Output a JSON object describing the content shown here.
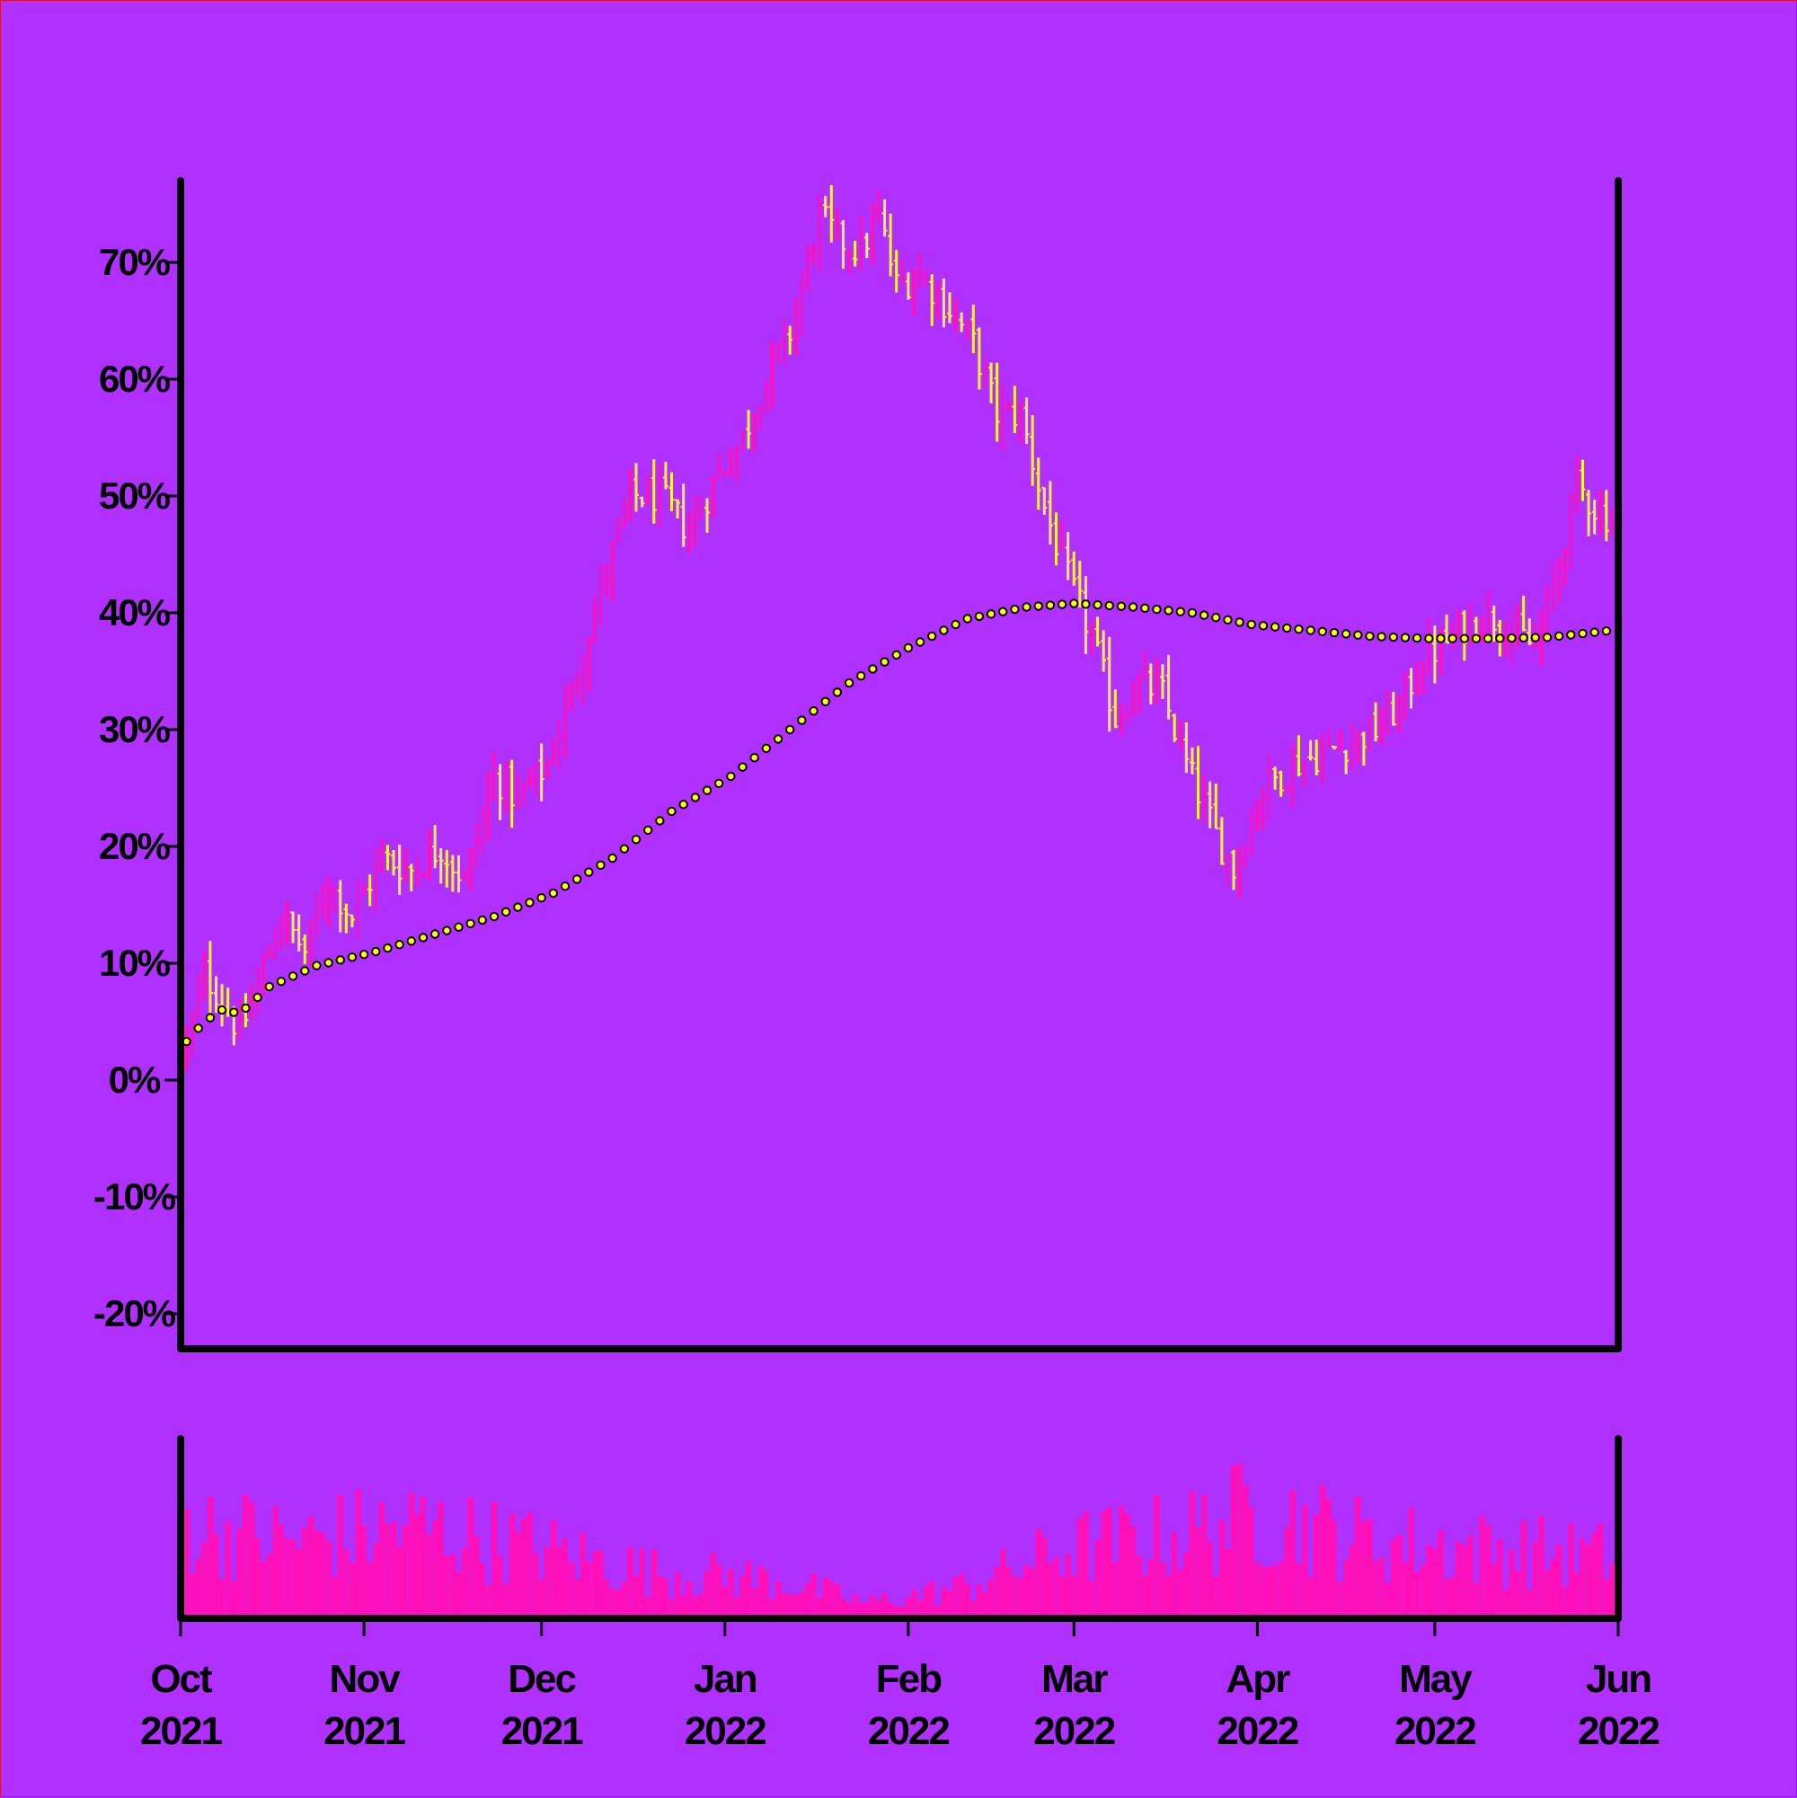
{
  "colors": {
    "background": "#b030ff",
    "up": "#ff10b8",
    "down": "#ffee44",
    "volume": "#ff10b8",
    "axis": "#000000",
    "trend_fill": "#ffff00"
  },
  "chart_data": {
    "type": "ohlc",
    "title": "",
    "xlabel": "",
    "ylabel": "",
    "ylim": [
      -0.23,
      0.77
    ],
    "yticks": [
      -0.2,
      -0.1,
      0,
      0.1,
      0.2,
      0.3,
      0.4,
      0.5,
      0.6,
      0.7
    ],
    "ytick_labels": [
      "-20%",
      "-10%",
      "0%",
      "10%",
      "20%",
      "30%",
      "40%",
      "50%",
      "60%",
      "70%"
    ],
    "xrange": [
      "2021-10-01",
      "2022-06-01"
    ],
    "xticks": [
      {
        "date": "2021-10-01",
        "month": "Oct",
        "year": "2021"
      },
      {
        "date": "2021-11-01",
        "month": "Nov",
        "year": "2021"
      },
      {
        "date": "2021-12-01",
        "month": "Dec",
        "year": "2021"
      },
      {
        "date": "2022-01-01",
        "month": "Jan",
        "year": "2022"
      },
      {
        "date": "2022-02-01",
        "month": "Feb",
        "year": "2022"
      },
      {
        "date": "2022-03-01",
        "month": "Mar",
        "year": "2022"
      },
      {
        "date": "2022-04-01",
        "month": "Apr",
        "year": "2022"
      },
      {
        "date": "2022-05-01",
        "month": "May",
        "year": "2022"
      },
      {
        "date": "2022-06-01",
        "month": "Jun",
        "year": "2022"
      }
    ],
    "price_anchors": [
      [
        "2021-10-02",
        0.03
      ],
      [
        "2021-10-05",
        0.09
      ],
      [
        "2021-10-08",
        0.07
      ],
      [
        "2021-10-11",
        0.04
      ],
      [
        "2021-10-14",
        0.08
      ],
      [
        "2021-10-18",
        0.14
      ],
      [
        "2021-10-22",
        0.11
      ],
      [
        "2021-10-26",
        0.17
      ],
      [
        "2021-10-30",
        0.14
      ],
      [
        "2021-11-04",
        0.19
      ],
      [
        "2021-11-09",
        0.18
      ],
      [
        "2021-11-14",
        0.2
      ],
      [
        "2021-11-18",
        0.17
      ],
      [
        "2021-11-23",
        0.26
      ],
      [
        "2021-11-27",
        0.24
      ],
      [
        "2021-12-02",
        0.27
      ],
      [
        "2021-12-06",
        0.33
      ],
      [
        "2021-12-11",
        0.42
      ],
      [
        "2021-12-16",
        0.5
      ],
      [
        "2021-12-21",
        0.5
      ],
      [
        "2021-12-26",
        0.47
      ],
      [
        "2021-12-31",
        0.52
      ],
      [
        "2022-01-04",
        0.55
      ],
      [
        "2022-01-08",
        0.6
      ],
      [
        "2022-01-12",
        0.64
      ],
      [
        "2022-01-17",
        0.74
      ],
      [
        "2022-01-20",
        0.72
      ],
      [
        "2022-01-24",
        0.71
      ],
      [
        "2022-01-27",
        0.74
      ],
      [
        "2022-01-30",
        0.68
      ],
      [
        "2022-02-03",
        0.69
      ],
      [
        "2022-02-08",
        0.66
      ],
      [
        "2022-02-12",
        0.63
      ],
      [
        "2022-02-16",
        0.57
      ],
      [
        "2022-02-20",
        0.57
      ],
      [
        "2022-02-24",
        0.49
      ],
      [
        "2022-02-28",
        0.43
      ],
      [
        "2022-03-04",
        0.38
      ],
      [
        "2022-03-08",
        0.31
      ],
      [
        "2022-03-12",
        0.34
      ],
      [
        "2022-03-16",
        0.33
      ],
      [
        "2022-03-20",
        0.27
      ],
      [
        "2022-03-25",
        0.21
      ],
      [
        "2022-03-28",
        0.18
      ],
      [
        "2022-04-02",
        0.25
      ],
      [
        "2022-04-07",
        0.27
      ],
      [
        "2022-04-12",
        0.28
      ],
      [
        "2022-04-17",
        0.29
      ],
      [
        "2022-04-21",
        0.3
      ],
      [
        "2022-04-25",
        0.32
      ],
      [
        "2022-04-29",
        0.36
      ],
      [
        "2022-05-04",
        0.38
      ],
      [
        "2022-05-09",
        0.4
      ],
      [
        "2022-05-13",
        0.39
      ],
      [
        "2022-05-18",
        0.37
      ],
      [
        "2022-05-21",
        0.42
      ],
      [
        "2022-05-25",
        0.51
      ],
      [
        "2022-05-28",
        0.49
      ],
      [
        "2022-05-31",
        0.48
      ]
    ],
    "moving_average": [
      [
        "2021-10-02",
        0.033
      ],
      [
        "2021-10-05",
        0.05
      ],
      [
        "2021-10-08",
        0.06
      ],
      [
        "2021-10-11",
        0.057
      ],
      [
        "2021-10-16",
        0.08
      ],
      [
        "2021-10-24",
        0.098
      ],
      [
        "2021-11-03",
        0.11
      ],
      [
        "2021-11-13",
        0.125
      ],
      [
        "2021-11-23",
        0.14
      ],
      [
        "2021-12-03",
        0.16
      ],
      [
        "2021-12-13",
        0.19
      ],
      [
        "2021-12-23",
        0.23
      ],
      [
        "2022-01-02",
        0.26
      ],
      [
        "2022-01-12",
        0.3
      ],
      [
        "2022-01-22",
        0.34
      ],
      [
        "2022-02-01",
        0.37
      ],
      [
        "2022-02-11",
        0.395
      ],
      [
        "2022-02-21",
        0.405
      ],
      [
        "2022-03-01",
        0.408
      ],
      [
        "2022-03-11",
        0.405
      ],
      [
        "2022-03-21",
        0.4
      ],
      [
        "2022-03-31",
        0.39
      ],
      [
        "2022-04-10",
        0.385
      ],
      [
        "2022-04-20",
        0.38
      ],
      [
        "2022-04-30",
        0.378
      ],
      [
        "2022-05-10",
        0.378
      ],
      [
        "2022-05-20",
        0.379
      ],
      [
        "2022-05-31",
        0.385
      ]
    ],
    "volume_anchors": [
      [
        "2021-10-02",
        0.6
      ],
      [
        "2021-10-20",
        0.5
      ],
      [
        "2021-11-10",
        0.6
      ],
      [
        "2021-12-01",
        0.45
      ],
      [
        "2021-12-20",
        0.3
      ],
      [
        "2022-01-10",
        0.25
      ],
      [
        "2022-01-25",
        0.1
      ],
      [
        "2022-02-10",
        0.2
      ],
      [
        "2022-02-28",
        0.45
      ],
      [
        "2022-03-20",
        0.55
      ],
      [
        "2022-04-01",
        0.7
      ],
      [
        "2022-04-20",
        0.5
      ],
      [
        "2022-05-10",
        0.45
      ],
      [
        "2022-05-31",
        0.4
      ]
    ]
  }
}
